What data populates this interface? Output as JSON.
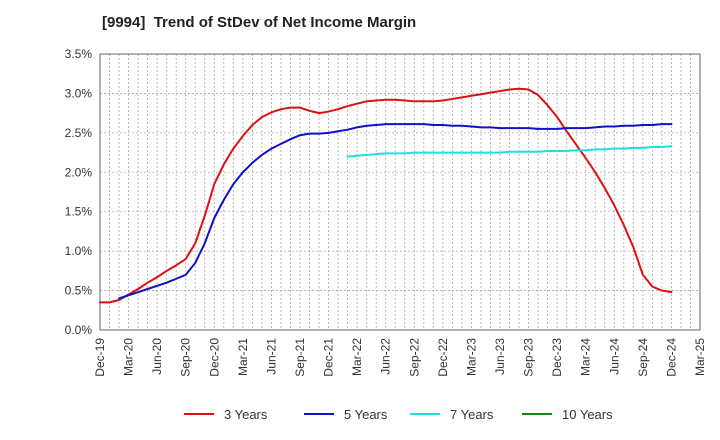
{
  "chart_data": {
    "type": "line",
    "title": "[9994]  Trend of StDev of Net Income Margin",
    "xlabel": "",
    "ylabel": "",
    "x_ticks": [
      "Dec-19",
      "Mar-20",
      "Jun-20",
      "Sep-20",
      "Dec-20",
      "Mar-21",
      "Jun-21",
      "Sep-21",
      "Dec-21",
      "Mar-22",
      "Jun-22",
      "Sep-22",
      "Dec-22",
      "Mar-23",
      "Jun-23",
      "Sep-23",
      "Dec-23",
      "Mar-24",
      "Jun-24",
      "Sep-24",
      "Dec-24",
      "Mar-25"
    ],
    "y_ticks": [
      "0.0%",
      "0.5%",
      "1.0%",
      "1.5%",
      "2.0%",
      "2.5%",
      "3.0%",
      "3.5%"
    ],
    "ylim": [
      0,
      3.5
    ],
    "grid": true,
    "legend_position": "bottom",
    "series": [
      {
        "name": "3 Years",
        "color": "#dd1111",
        "values": [
          [
            "Dec-19",
            0.35
          ],
          [
            "Jan-20",
            0.35
          ],
          [
            "Feb-20",
            0.38
          ],
          [
            "Mar-20",
            0.45
          ],
          [
            "Apr-20",
            0.52
          ],
          [
            "May-20",
            0.6
          ],
          [
            "Jun-20",
            0.67
          ],
          [
            "Jul-20",
            0.75
          ],
          [
            "Aug-20",
            0.82
          ],
          [
            "Sep-20",
            0.9
          ],
          [
            "Oct-20",
            1.1
          ],
          [
            "Nov-20",
            1.45
          ],
          [
            "Dec-20",
            1.85
          ],
          [
            "Jan-21",
            2.1
          ],
          [
            "Feb-21",
            2.3
          ],
          [
            "Mar-21",
            2.46
          ],
          [
            "Apr-21",
            2.6
          ],
          [
            "May-21",
            2.7
          ],
          [
            "Jun-21",
            2.76
          ],
          [
            "Jul-21",
            2.8
          ],
          [
            "Aug-21",
            2.82
          ],
          [
            "Sep-21",
            2.82
          ],
          [
            "Oct-21",
            2.78
          ],
          [
            "Nov-21",
            2.75
          ],
          [
            "Dec-21",
            2.77
          ],
          [
            "Jan-22",
            2.8
          ],
          [
            "Feb-22",
            2.84
          ],
          [
            "Mar-22",
            2.87
          ],
          [
            "Apr-22",
            2.9
          ],
          [
            "May-22",
            2.91
          ],
          [
            "Jun-22",
            2.92
          ],
          [
            "Jul-22",
            2.92
          ],
          [
            "Aug-22",
            2.91
          ],
          [
            "Sep-22",
            2.9
          ],
          [
            "Oct-22",
            2.9
          ],
          [
            "Nov-22",
            2.9
          ],
          [
            "Dec-22",
            2.91
          ],
          [
            "Jan-23",
            2.93
          ],
          [
            "Feb-23",
            2.95
          ],
          [
            "Mar-23",
            2.97
          ],
          [
            "Apr-23",
            2.99
          ],
          [
            "May-23",
            3.01
          ],
          [
            "Jun-23",
            3.03
          ],
          [
            "Jul-23",
            3.05
          ],
          [
            "Aug-23",
            3.06
          ],
          [
            "Sep-23",
            3.05
          ],
          [
            "Oct-23",
            2.98
          ],
          [
            "Nov-23",
            2.85
          ],
          [
            "Dec-23",
            2.7
          ],
          [
            "Jan-24",
            2.52
          ],
          [
            "Feb-24",
            2.35
          ],
          [
            "Mar-24",
            2.18
          ],
          [
            "Apr-24",
            2.0
          ],
          [
            "May-24",
            1.8
          ],
          [
            "Jun-24",
            1.58
          ],
          [
            "Jul-24",
            1.33
          ],
          [
            "Aug-24",
            1.05
          ],
          [
            "Sep-24",
            0.7
          ],
          [
            "Oct-24",
            0.55
          ],
          [
            "Nov-24",
            0.5
          ],
          [
            "Dec-24",
            0.48
          ]
        ]
      },
      {
        "name": "5 Years",
        "color": "#1111cc",
        "values": [
          [
            "Feb-20",
            0.4
          ],
          [
            "Mar-20",
            0.44
          ],
          [
            "Apr-20",
            0.48
          ],
          [
            "May-20",
            0.52
          ],
          [
            "Jun-20",
            0.56
          ],
          [
            "Jul-20",
            0.6
          ],
          [
            "Aug-20",
            0.65
          ],
          [
            "Sep-20",
            0.7
          ],
          [
            "Oct-20",
            0.85
          ],
          [
            "Nov-20",
            1.1
          ],
          [
            "Dec-20",
            1.42
          ],
          [
            "Jan-21",
            1.65
          ],
          [
            "Feb-21",
            1.85
          ],
          [
            "Mar-21",
            2.0
          ],
          [
            "Apr-21",
            2.12
          ],
          [
            "May-21",
            2.22
          ],
          [
            "Jun-21",
            2.3
          ],
          [
            "Jul-21",
            2.36
          ],
          [
            "Aug-21",
            2.42
          ],
          [
            "Sep-21",
            2.47
          ],
          [
            "Oct-21",
            2.49
          ],
          [
            "Nov-21",
            2.49
          ],
          [
            "Dec-21",
            2.5
          ],
          [
            "Jan-22",
            2.52
          ],
          [
            "Feb-22",
            2.54
          ],
          [
            "Mar-22",
            2.57
          ],
          [
            "Apr-22",
            2.59
          ],
          [
            "May-22",
            2.6
          ],
          [
            "Jun-22",
            2.61
          ],
          [
            "Jul-22",
            2.61
          ],
          [
            "Aug-22",
            2.61
          ],
          [
            "Sep-22",
            2.61
          ],
          [
            "Oct-22",
            2.61
          ],
          [
            "Nov-22",
            2.6
          ],
          [
            "Dec-22",
            2.6
          ],
          [
            "Jan-23",
            2.59
          ],
          [
            "Feb-23",
            2.59
          ],
          [
            "Mar-23",
            2.58
          ],
          [
            "Apr-23",
            2.57
          ],
          [
            "May-23",
            2.57
          ],
          [
            "Jun-23",
            2.56
          ],
          [
            "Jul-23",
            2.56
          ],
          [
            "Aug-23",
            2.56
          ],
          [
            "Sep-23",
            2.56
          ],
          [
            "Oct-23",
            2.55
          ],
          [
            "Nov-23",
            2.55
          ],
          [
            "Dec-23",
            2.55
          ],
          [
            "Jan-24",
            2.56
          ],
          [
            "Feb-24",
            2.56
          ],
          [
            "Mar-24",
            2.56
          ],
          [
            "Apr-24",
            2.57
          ],
          [
            "May-24",
            2.58
          ],
          [
            "Jun-24",
            2.58
          ],
          [
            "Jul-24",
            2.59
          ],
          [
            "Aug-24",
            2.59
          ],
          [
            "Sep-24",
            2.6
          ],
          [
            "Oct-24",
            2.6
          ],
          [
            "Nov-24",
            2.61
          ],
          [
            "Dec-24",
            2.61
          ]
        ]
      },
      {
        "name": "7 Years",
        "color": "#22dddd",
        "values": [
          [
            "Feb-22",
            2.2
          ],
          [
            "Mar-22",
            2.21
          ],
          [
            "Apr-22",
            2.22
          ],
          [
            "May-22",
            2.23
          ],
          [
            "Jun-22",
            2.24
          ],
          [
            "Jul-22",
            2.24
          ],
          [
            "Aug-22",
            2.24
          ],
          [
            "Sep-22",
            2.25
          ],
          [
            "Oct-22",
            2.25
          ],
          [
            "Nov-22",
            2.25
          ],
          [
            "Dec-22",
            2.25
          ],
          [
            "Jan-23",
            2.25
          ],
          [
            "Feb-23",
            2.25
          ],
          [
            "Mar-23",
            2.25
          ],
          [
            "Apr-23",
            2.25
          ],
          [
            "May-23",
            2.25
          ],
          [
            "Jun-23",
            2.25
          ],
          [
            "Jul-23",
            2.26
          ],
          [
            "Aug-23",
            2.26
          ],
          [
            "Sep-23",
            2.26
          ],
          [
            "Oct-23",
            2.26
          ],
          [
            "Nov-23",
            2.27
          ],
          [
            "Dec-23",
            2.27
          ],
          [
            "Jan-24",
            2.27
          ],
          [
            "Feb-24",
            2.28
          ],
          [
            "Mar-24",
            2.28
          ],
          [
            "Apr-24",
            2.29
          ],
          [
            "May-24",
            2.29
          ],
          [
            "Jun-24",
            2.3
          ],
          [
            "Jul-24",
            2.3
          ],
          [
            "Aug-24",
            2.31
          ],
          [
            "Sep-24",
            2.31
          ],
          [
            "Oct-24",
            2.32
          ],
          [
            "Nov-24",
            2.32
          ],
          [
            "Dec-24",
            2.33
          ]
        ]
      },
      {
        "name": "10 Years",
        "color": "#118811",
        "values": []
      }
    ]
  }
}
